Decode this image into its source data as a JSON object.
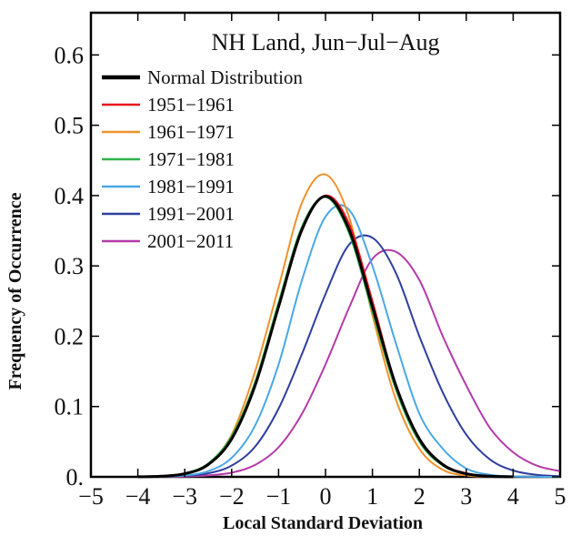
{
  "chart_data": {
    "type": "line",
    "title": "NH Land, Jun−Jul−Aug",
    "xlabel": "Local Standard Deviation",
    "ylabel": "Frequency of Occurrence",
    "xlim": [
      -5,
      5
    ],
    "ylim": [
      0,
      0.66
    ],
    "xticks": [
      -5,
      -4,
      -3,
      -2,
      -1,
      0,
      1,
      2,
      3,
      4,
      5
    ],
    "xtick_labels": [
      "−5",
      "−4",
      "−3",
      "−2",
      "−1",
      "0",
      "1",
      "2",
      "3",
      "4",
      "5"
    ],
    "yticks": [
      0,
      0.1,
      0.2,
      0.3,
      0.4,
      0.5,
      0.6
    ],
    "ytick_labels": [
      "0.",
      "0.1",
      "0.2",
      "0.3",
      "0.4",
      "0.5",
      "0.6"
    ],
    "grid": false,
    "legend_position": "top-left",
    "series": [
      {
        "name": "Normal Distribution",
        "color": "#000000",
        "mean": 0,
        "sd": 1,
        "x": [
          -4,
          -3.5,
          -3,
          -2.5,
          -2,
          -1.5,
          -1,
          -0.5,
          0,
          0.5,
          1,
          1.5,
          2,
          2.5,
          3,
          3.5,
          4
        ],
        "values": [
          0.0001,
          0.0009,
          0.0044,
          0.0175,
          0.054,
          0.13,
          0.242,
          0.352,
          0.399,
          0.352,
          0.242,
          0.13,
          0.054,
          0.0175,
          0.0044,
          0.0009,
          0.0001
        ]
      },
      {
        "name": "1951−1961",
        "color": "#e8141c",
        "mean": 0.02,
        "sd": 1.0,
        "x": [
          -4,
          -3.5,
          -3,
          -2.5,
          -2,
          -1.5,
          -1,
          -0.5,
          0,
          0.5,
          1,
          1.5,
          2,
          2.5,
          3,
          3.5,
          4
        ],
        "values": [
          0.0001,
          0.001,
          0.005,
          0.018,
          0.056,
          0.13,
          0.24,
          0.35,
          0.4,
          0.36,
          0.25,
          0.13,
          0.055,
          0.018,
          0.005,
          0.001,
          0.0001
        ]
      },
      {
        "name": "1961−1971",
        "color": "#f0922a",
        "mean": -0.1,
        "sd": 0.92,
        "x": [
          -4,
          -3.5,
          -3,
          -2.5,
          -2,
          -1.5,
          -1,
          -0.5,
          0,
          0.5,
          1,
          1.5,
          2,
          2.5,
          3,
          3.5,
          4
        ],
        "values": [
          0.0001,
          0.001,
          0.004,
          0.018,
          0.06,
          0.15,
          0.27,
          0.39,
          0.43,
          0.37,
          0.23,
          0.11,
          0.04,
          0.01,
          0.002,
          0.0003,
          0.0001
        ]
      },
      {
        "name": "1971−1981",
        "color": "#2fb24a",
        "mean": -0.05,
        "sd": 1.0,
        "x": [
          -4,
          -3.5,
          -3,
          -2.5,
          -2,
          -1.5,
          -1,
          -0.5,
          0,
          0.5,
          1,
          1.5,
          2,
          2.5,
          3,
          3.5,
          4
        ],
        "values": [
          0.0001,
          0.001,
          0.005,
          0.019,
          0.058,
          0.135,
          0.248,
          0.356,
          0.398,
          0.347,
          0.235,
          0.124,
          0.05,
          0.016,
          0.004,
          0.0008,
          0.0001
        ]
      },
      {
        "name": "1981−1991",
        "color": "#4aa8e4",
        "mean": 0.27,
        "sd": 1.05,
        "x": [
          -4,
          -3.5,
          -3,
          -2.5,
          -2,
          -1.5,
          -1,
          -0.5,
          0,
          0.5,
          1,
          1.5,
          2,
          2.5,
          3,
          3.5,
          4,
          4.5,
          5
        ],
        "values": [
          0.0001,
          0.0004,
          0.002,
          0.008,
          0.027,
          0.073,
          0.16,
          0.28,
          0.37,
          0.38,
          0.3,
          0.19,
          0.09,
          0.04,
          0.012,
          0.003,
          0.0006,
          0.0001,
          0.0
        ]
      },
      {
        "name": "1991−2001",
        "color": "#2e3f9c",
        "mean": 0.6,
        "sd": 1.15,
        "x": [
          -4,
          -3.5,
          -3,
          -2.5,
          -2,
          -1.5,
          -1,
          -0.5,
          0,
          0.5,
          1,
          1.5,
          2,
          2.5,
          3,
          3.5,
          4,
          4.5,
          5
        ],
        "values": [
          0.0001,
          0.0003,
          0.0015,
          0.005,
          0.016,
          0.043,
          0.097,
          0.175,
          0.26,
          0.33,
          0.34,
          0.29,
          0.2,
          0.12,
          0.06,
          0.025,
          0.009,
          0.003,
          0.001
        ]
      },
      {
        "name": "2001−2011",
        "color": "#b43aa8",
        "mean": 1.0,
        "sd": 1.25,
        "x": [
          -4,
          -3.5,
          -3,
          -2.5,
          -2,
          -1.5,
          -1,
          -0.5,
          0,
          0.5,
          1,
          1.5,
          2,
          2.5,
          3,
          3.5,
          4,
          4.5,
          5
        ],
        "values": [
          0.0,
          0.0001,
          0.0005,
          0.002,
          0.006,
          0.017,
          0.042,
          0.09,
          0.16,
          0.24,
          0.31,
          0.32,
          0.28,
          0.2,
          0.13,
          0.07,
          0.035,
          0.016,
          0.008
        ]
      }
    ]
  }
}
